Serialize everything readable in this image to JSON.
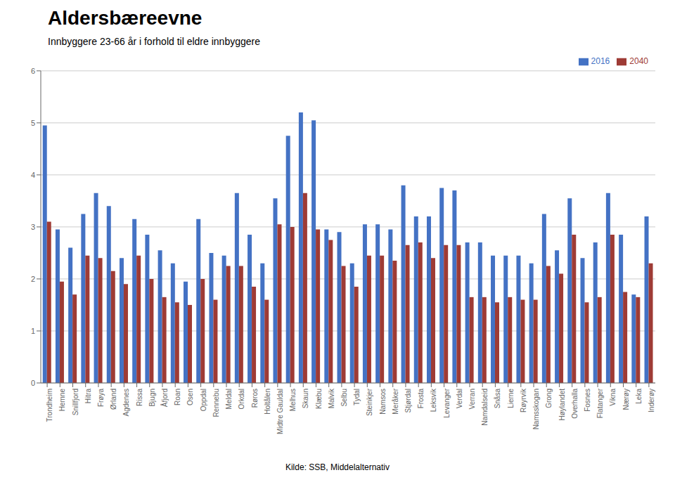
{
  "chart_data": {
    "type": "bar",
    "title": "Aldersbæreevne",
    "subtitle": "Innbyggere 23-66 år i forhold til eldre innbyggere",
    "annotations": [
      "Kilde: SSB, Middelalternativ"
    ],
    "categories": [
      "Trondheim",
      "Hemne",
      "Snillfjord",
      "Hitra",
      "Frøya",
      "Ørland",
      "Agdenes",
      "Rissa",
      "Bjugn",
      "Åfjord",
      "Roan",
      "Osen",
      "Oppdal",
      "Rennebu",
      "Meldal",
      "Orkdal",
      "Røros",
      "Holtålen",
      "Midtre Gauldal",
      "Melhus",
      "Skaun",
      "Klæbu",
      "Malvik",
      "Selbu",
      "Tydal",
      "Steinkjer",
      "Namsos",
      "Meråker",
      "Stjørdal",
      "Frosta",
      "Leksvik",
      "Levanger",
      "Verdal",
      "Verran",
      "Namdalseid",
      "Snåsa",
      "Lierne",
      "Røyrvik",
      "Namsskogan",
      "Grong",
      "Høylandet",
      "Overhalla",
      "Fosnes",
      "Flatanger",
      "Vikna",
      "Nærøy",
      "Leka",
      "Inderøy"
    ],
    "series": [
      {
        "name": "2016",
        "color": "#4472C4",
        "values": [
          4.95,
          2.95,
          2.6,
          3.25,
          3.65,
          3.4,
          2.4,
          3.15,
          2.85,
          2.55,
          2.3,
          1.95,
          3.15,
          2.5,
          2.45,
          3.65,
          2.85,
          2.3,
          3.55,
          4.75,
          5.2,
          5.05,
          2.95,
          2.9,
          2.3,
          3.05,
          3.05,
          2.95,
          3.8,
          3.2,
          3.2,
          3.75,
          3.7,
          2.7,
          2.7,
          2.45,
          2.45,
          2.45,
          2.3,
          3.25,
          2.55,
          3.55,
          2.4,
          2.7,
          3.65,
          2.85,
          1.7,
          3.2
        ]
      },
      {
        "name": "2040",
        "color": "#9E3B35",
        "values": [
          3.1,
          1.95,
          1.7,
          2.45,
          2.4,
          2.15,
          1.9,
          2.45,
          2.0,
          1.65,
          1.55,
          1.5,
          2.0,
          1.6,
          2.25,
          2.25,
          1.85,
          1.6,
          3.05,
          3.0,
          3.65,
          2.95,
          2.75,
          2.25,
          1.85,
          2.45,
          2.45,
          2.35,
          2.65,
          2.7,
          2.4,
          2.65,
          2.65,
          1.65,
          1.65,
          1.55,
          1.65,
          1.6,
          1.6,
          2.25,
          2.1,
          2.85,
          1.55,
          1.65,
          2.85,
          1.75,
          1.65,
          2.3
        ]
      }
    ],
    "ylim": [
      0,
      6
    ],
    "yticks": [
      0,
      1,
      2,
      3,
      4,
      5,
      6
    ],
    "grid": true,
    "legend": "upper right"
  }
}
